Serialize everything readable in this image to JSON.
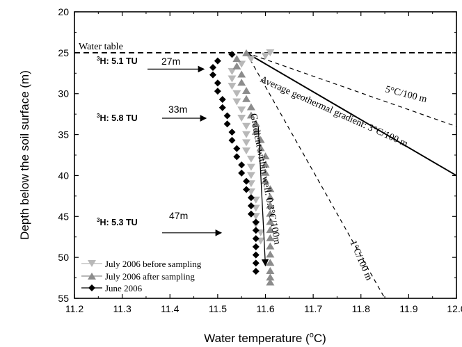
{
  "chart_data": {
    "type": "scatter",
    "xlabel": "Water temperature (°C)",
    "xlabel_parts": [
      "Water temperature (",
      "o",
      "C)"
    ],
    "ylabel": "Depth below the soil surface (m)",
    "xlim": [
      11.2,
      12.0
    ],
    "ylim": [
      55,
      20
    ],
    "y_inverted": true,
    "xticks": [
      11.2,
      11.3,
      11.4,
      11.5,
      11.6,
      11.7,
      11.8,
      11.9,
      12.0
    ],
    "xtick_labels": [
      "11.2",
      "11.3",
      "11.4",
      "11.5",
      "11.6",
      "11.7",
      "11.8",
      "11.9",
      "12.0"
    ],
    "yticks": [
      20,
      25,
      30,
      35,
      40,
      45,
      50,
      55
    ],
    "ytick_labels": [
      "20",
      "25",
      "30",
      "35",
      "40",
      "45",
      "50",
      "55"
    ],
    "grid": false,
    "legend_position": "bottom-left",
    "series": [
      {
        "name": "July 2006 before sampling",
        "marker": "triangle-down",
        "color": "#b8b8b8",
        "x": [
          11.61,
          11.6,
          11.57,
          11.55,
          11.53,
          11.53,
          11.53,
          11.54,
          11.54,
          11.55,
          11.55,
          11.56,
          11.56,
          11.56,
          11.56,
          11.57,
          11.57,
          11.57,
          11.57,
          11.57,
          11.58,
          11.58,
          11.58,
          11.58,
          11.59,
          11.59
        ],
        "y": [
          25.0,
          25.4,
          25.8,
          26.4,
          27.3,
          28.2,
          29.1,
          30.0,
          31.0,
          32.0,
          33.0,
          34.0,
          35.0,
          36.0,
          37.0,
          38.0,
          39.0,
          40.0,
          41.0,
          42.0,
          43.0,
          44.0,
          45.0,
          46.0,
          47.0,
          48.0
        ]
      },
      {
        "name": "July 2006 after sampling",
        "marker": "triangle-up",
        "color": "#8c8c8c",
        "x": [
          11.56,
          11.54,
          11.54,
          11.55,
          11.55,
          11.56,
          11.56,
          11.57,
          11.57,
          11.58,
          11.58,
          11.59,
          11.59,
          11.6,
          11.6,
          11.6,
          11.6,
          11.61,
          11.61,
          11.61,
          11.61,
          11.61,
          11.61,
          11.61,
          11.61,
          11.61,
          11.61,
          11.61,
          11.61,
          11.61
        ],
        "y": [
          25.0,
          25.7,
          26.6,
          27.6,
          28.6,
          29.6,
          30.6,
          31.6,
          32.6,
          33.6,
          34.6,
          35.6,
          36.6,
          37.6,
          38.6,
          39.6,
          40.6,
          41.6,
          42.6,
          43.6,
          44.6,
          45.6,
          46.6,
          47.6,
          48.6,
          49.6,
          50.6,
          51.6,
          52.4,
          53.0
        ]
      },
      {
        "name": "June 2006",
        "marker": "diamond",
        "color": "#000000",
        "x": [
          11.53,
          11.5,
          11.49,
          11.49,
          11.5,
          11.5,
          11.51,
          11.51,
          11.52,
          11.52,
          11.53,
          11.53,
          11.54,
          11.54,
          11.55,
          11.55,
          11.56,
          11.56,
          11.57,
          11.57,
          11.57,
          11.58,
          11.58,
          11.58,
          11.58,
          11.58,
          11.58,
          11.58
        ],
        "y": [
          25.2,
          26.0,
          26.8,
          27.7,
          28.7,
          29.7,
          30.7,
          31.7,
          32.7,
          33.7,
          34.7,
          35.7,
          36.7,
          37.7,
          38.7,
          39.7,
          40.7,
          41.7,
          42.7,
          43.7,
          44.7,
          45.7,
          46.7,
          47.7,
          48.7,
          49.7,
          50.7,
          51.7
        ]
      }
    ],
    "reference_lines": [
      {
        "label": "Water table",
        "style": "dashed",
        "x": [
          11.2,
          12.0
        ],
        "y": [
          25,
          25
        ]
      },
      {
        "label": "Average geothermal gradient: 3°C/100 m",
        "style": "solid",
        "x": [
          11.56,
          12.0
        ],
        "y": [
          25,
          40
        ]
      },
      {
        "label": "5°C/100 m",
        "style": "dashed",
        "x": [
          11.56,
          12.0
        ],
        "y": [
          25,
          34
        ]
      },
      {
        "label": "1°C/100 m",
        "style": "dashed",
        "x": [
          11.56,
          11.85
        ],
        "y": [
          25,
          55
        ]
      }
    ],
    "within_well_arrow": {
      "label": "Gradient within well: 0.3°C/100m",
      "x": [
        11.585,
        11.6
      ],
      "y": [
        34,
        51
      ]
    },
    "annotations": [
      {
        "label": "Water table"
      },
      {
        "label": "Average geothermal gradient: 3°C/100 m"
      },
      {
        "label": "5°C/100 m"
      },
      {
        "label": "1°C/100 m"
      },
      {
        "label": "Gradient within well: 0.3°C/100m"
      }
    ],
    "tritium_markers": [
      {
        "label": "H: 5.1 TU",
        "superscript": "3",
        "depth_label": "27m",
        "depth": 27
      },
      {
        "label": "H: 5.8 TU",
        "superscript": "3",
        "depth_label": "33m",
        "depth": 33
      },
      {
        "label": "H: 5.3 TU",
        "superscript": "3",
        "depth_label": "47m",
        "depth": 47
      }
    ]
  }
}
